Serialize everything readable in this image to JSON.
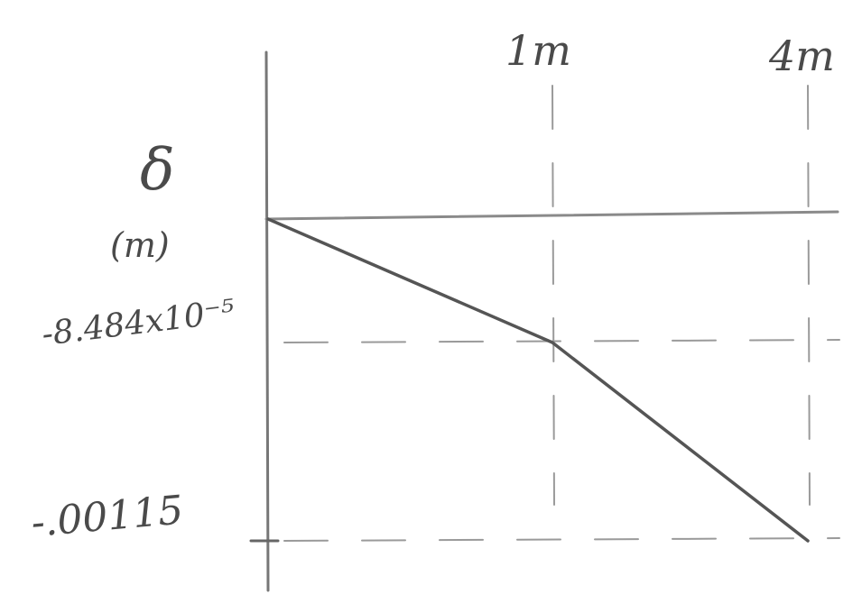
{
  "chart_data": {
    "type": "line",
    "title": "",
    "ylabel_symbol": "δ",
    "ylabel_unit": "(m)",
    "xlabel": "",
    "x_tick_labels": [
      "1m",
      "4m"
    ],
    "y_tick_labels": [
      "-8.484x10⁻⁵",
      "-.00115"
    ],
    "series": [
      {
        "x": [
          0,
          1,
          4
        ],
        "y": [
          0,
          -8.484e-05,
          -0.00115
        ]
      }
    ],
    "x_ticks": [
      1,
      4
    ],
    "y_ticks": [
      -8.484e-05,
      -0.00115
    ],
    "grid": false,
    "legend": "none"
  }
}
